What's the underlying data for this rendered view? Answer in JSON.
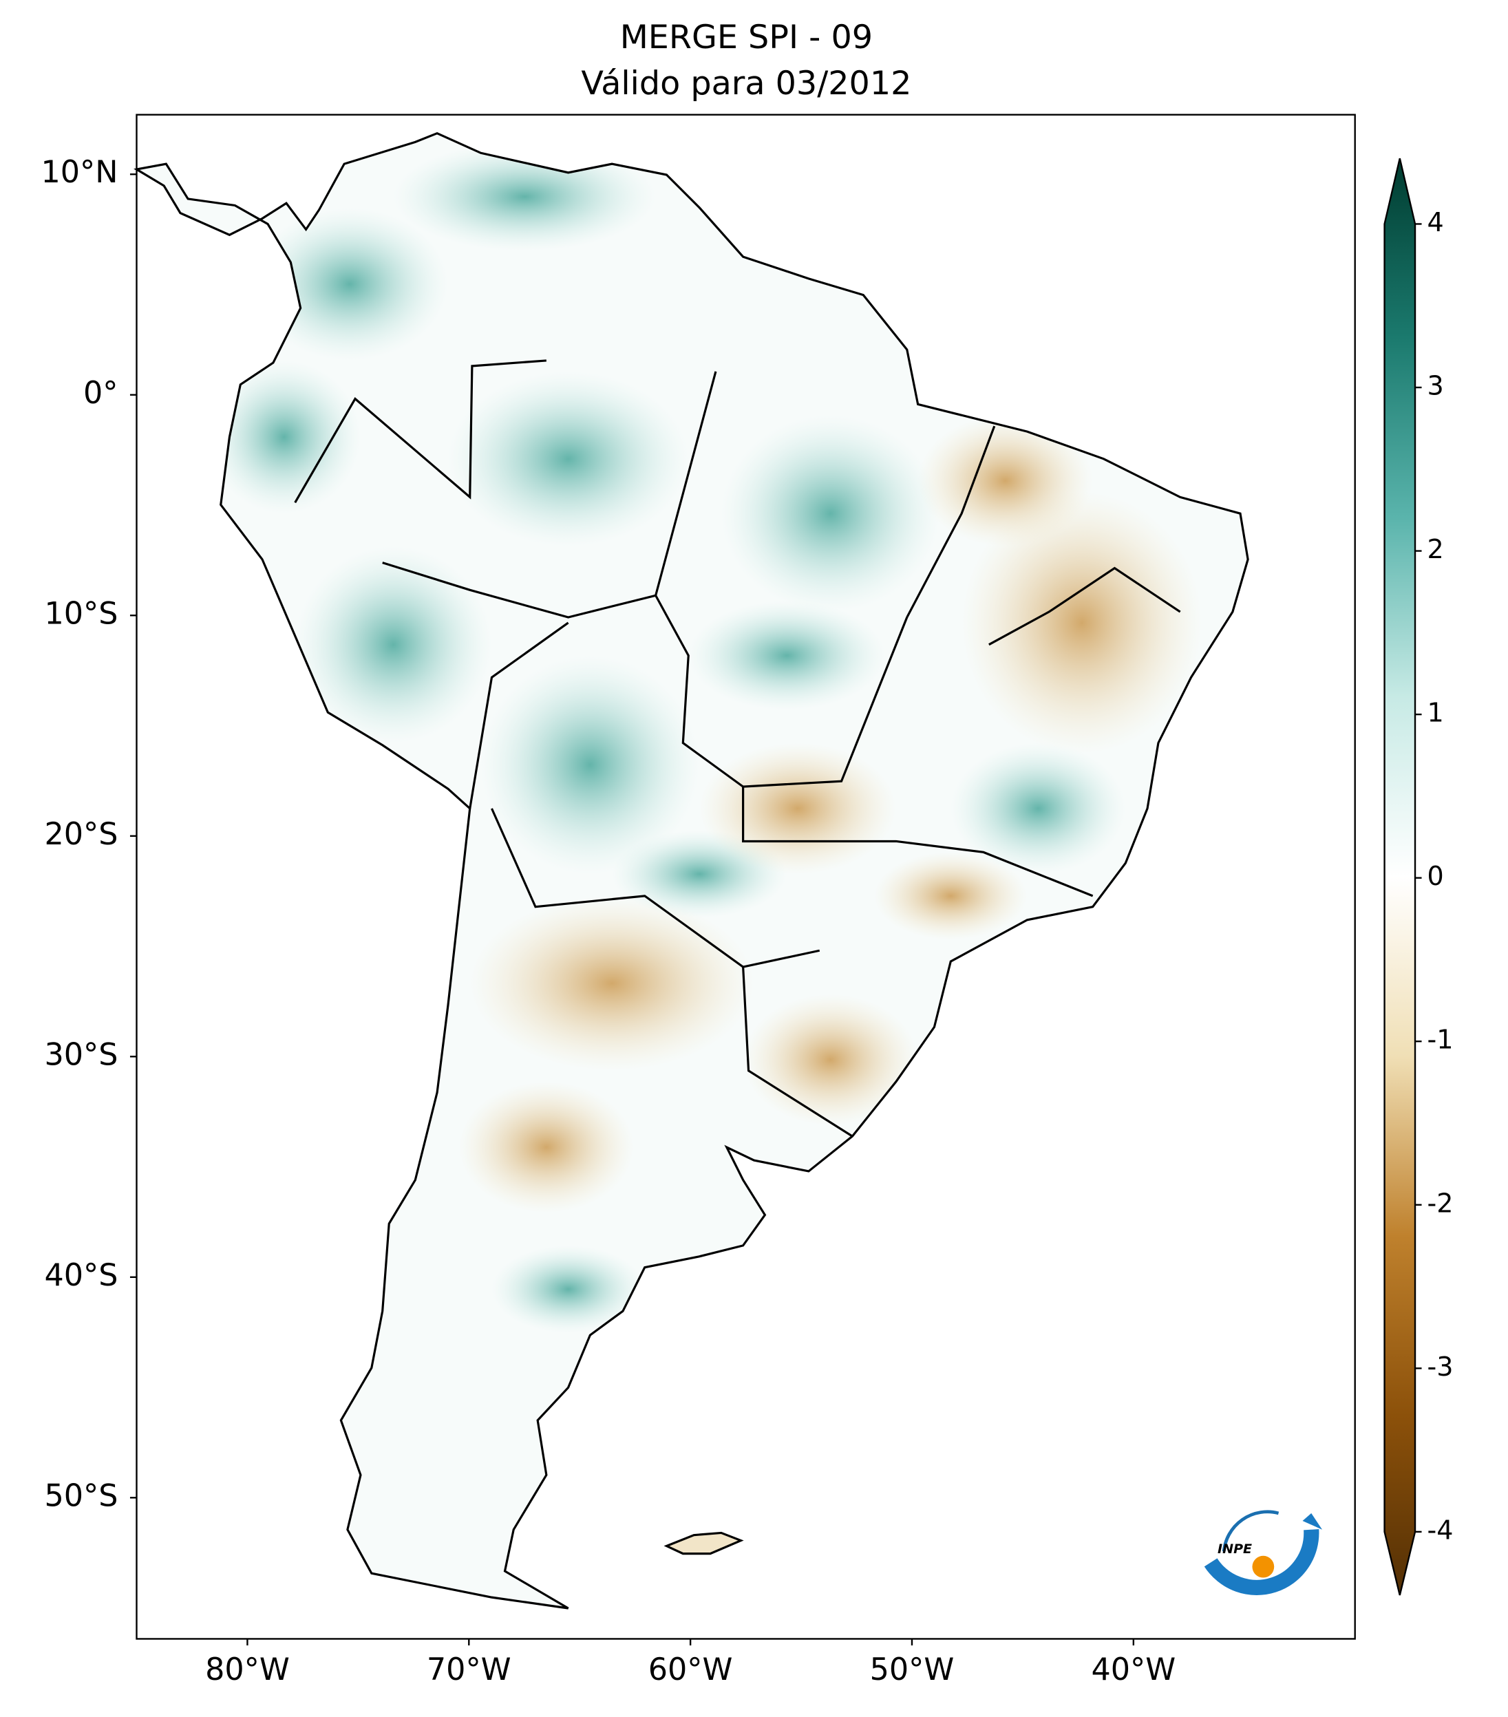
{
  "title": "MERGE   SPI - 09",
  "subtitle": "Válido para 03/2012",
  "map": {
    "lonlim": [
      -85,
      -30
    ],
    "latlim": [
      -56.4,
      12.7
    ],
    "lon_labels": [
      {
        "value": -80,
        "label": "80°W"
      },
      {
        "value": -70,
        "label": "70°W"
      },
      {
        "value": -60,
        "label": "60°W"
      },
      {
        "value": -50,
        "label": "50°W"
      },
      {
        "value": -40,
        "label": "40°W"
      }
    ],
    "lat_labels": [
      {
        "value": 10,
        "label": "10°N"
      },
      {
        "value": 0,
        "label": "0°"
      },
      {
        "value": -10,
        "label": "10°S"
      },
      {
        "value": -20,
        "label": "20°S"
      },
      {
        "value": -30,
        "label": "30°S"
      },
      {
        "value": -40,
        "label": "40°S"
      },
      {
        "value": -50,
        "label": "50°S"
      }
    ]
  },
  "colorbar": {
    "lim": [
      -4,
      4
    ],
    "ticks": [
      4,
      3,
      2,
      1,
      0,
      -1,
      -2,
      -3,
      -4
    ]
  },
  "logo_text": "INPE"
}
